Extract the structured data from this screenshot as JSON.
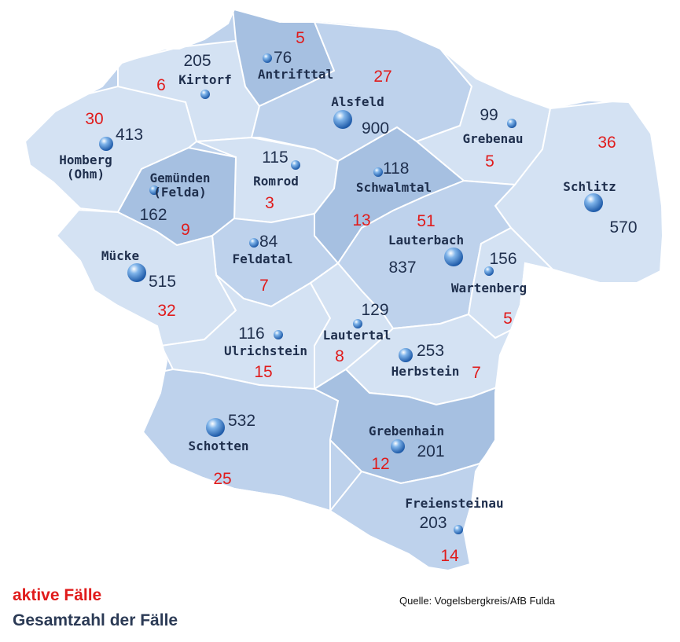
{
  "legend": {
    "active_label": "aktive Fälle",
    "total_label": "Gesamtzahl der Fälle"
  },
  "source": "Quelle: Vogelsbergkreis/AfB Fulda",
  "colors": {
    "active": "#e01b1b",
    "total": "#1f2f4d",
    "region_light": "#d4e2f3",
    "region_mid": "#bed2ec",
    "region_dark": "#a6c0e1",
    "border": "#ffffff"
  },
  "municipalities": [
    {
      "name": "Antrifttal",
      "total": "76",
      "active": "5"
    },
    {
      "name": "Kirtorf",
      "total": "205",
      "active": "6"
    },
    {
      "name": "Alsfeld",
      "total": "900",
      "active": "27"
    },
    {
      "name": "Grebenau",
      "total": "99",
      "active": "5"
    },
    {
      "name": "Homberg (Ohm)",
      "total": "413",
      "active": "30"
    },
    {
      "name": "Romrod",
      "total": "115",
      "active": "3"
    },
    {
      "name": "Schwalmtal",
      "total": "118",
      "active": "13"
    },
    {
      "name": "Schlitz",
      "total": "570",
      "active": "36"
    },
    {
      "name": "Gemünden (Felda)",
      "total": "162",
      "active": "9"
    },
    {
      "name": "Feldatal",
      "total": "84",
      "active": "7"
    },
    {
      "name": "Lauterbach",
      "total": "837",
      "active": "51"
    },
    {
      "name": "Wartenberg",
      "total": "156",
      "active": "5"
    },
    {
      "name": "Mücke",
      "total": "515",
      "active": "32"
    },
    {
      "name": "Lautertal",
      "total": "129",
      "active": "8"
    },
    {
      "name": "Ulrichstein",
      "total": "116",
      "active": "15"
    },
    {
      "name": "Herbstein",
      "total": "253",
      "active": "7"
    },
    {
      "name": "Schotten",
      "total": "532",
      "active": "25"
    },
    {
      "name": "Grebenhain",
      "total": "201",
      "active": "12"
    },
    {
      "name": "Freiensteinau",
      "total": "203",
      "active": "14"
    }
  ]
}
